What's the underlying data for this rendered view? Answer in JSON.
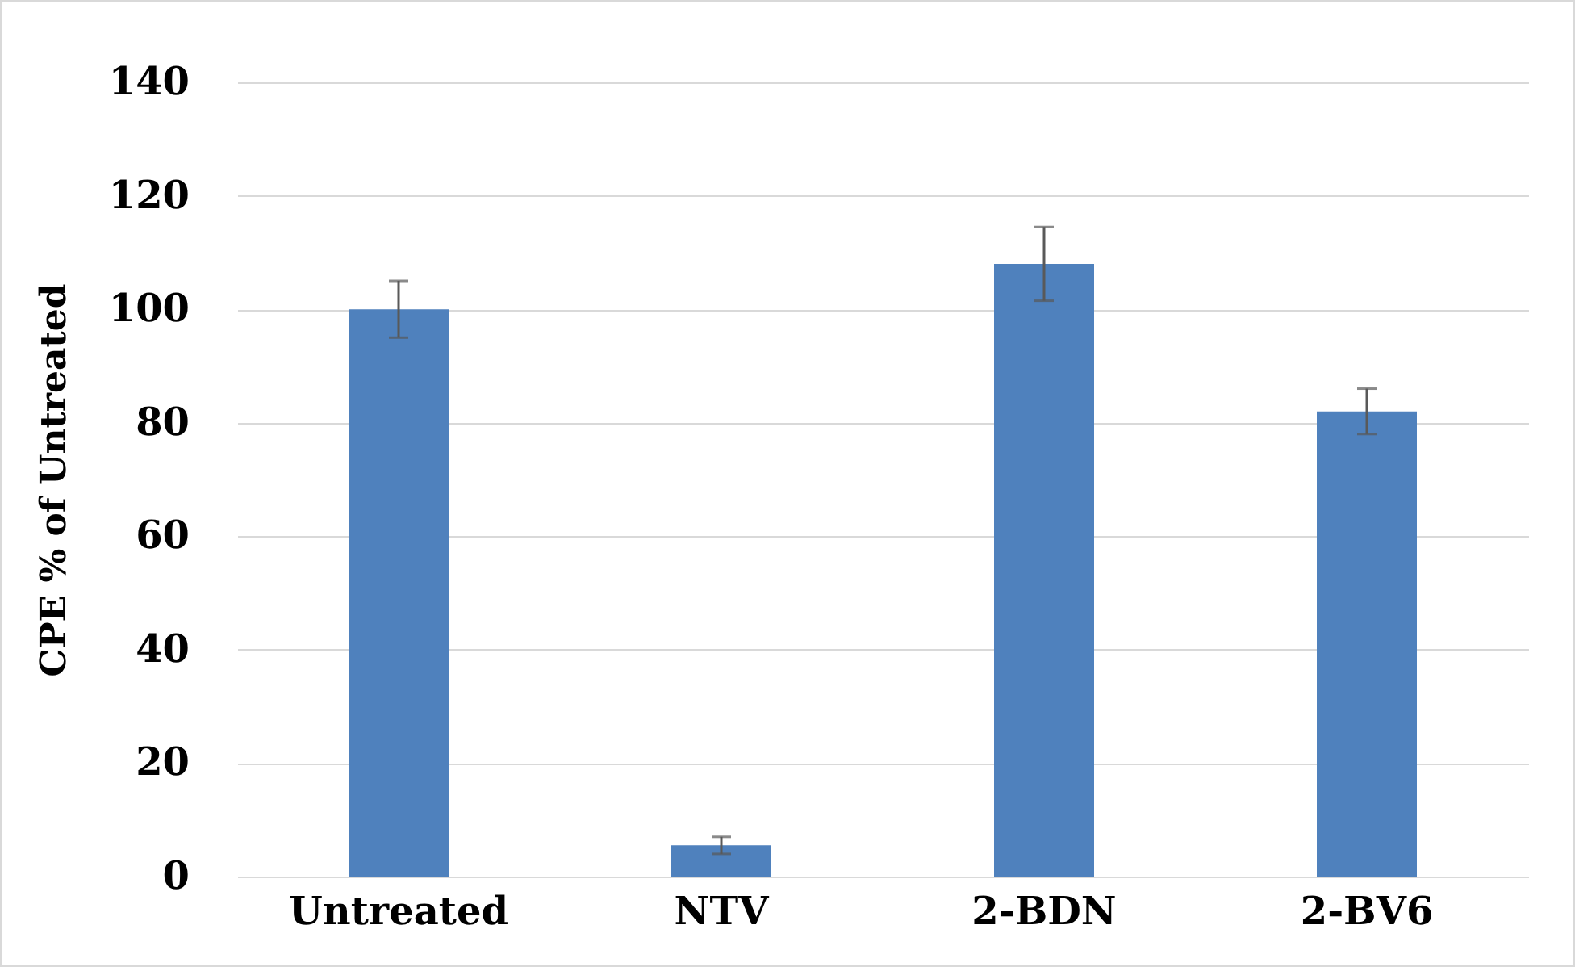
{
  "chart_data": {
    "type": "bar",
    "ylabel": "CPE % of Untreated",
    "categories": [
      "Untreated",
      "NTV",
      "2-BDN",
      "2-BV6"
    ],
    "values": [
      100,
      5.5,
      108,
      82
    ],
    "errors": [
      5,
      1.5,
      6.5,
      4
    ],
    "color": "#4f81bd",
    "ylim": [
      0,
      140
    ],
    "yticks": [
      0,
      20,
      40,
      60,
      80,
      100,
      120,
      140
    ],
    "grid": "y"
  }
}
